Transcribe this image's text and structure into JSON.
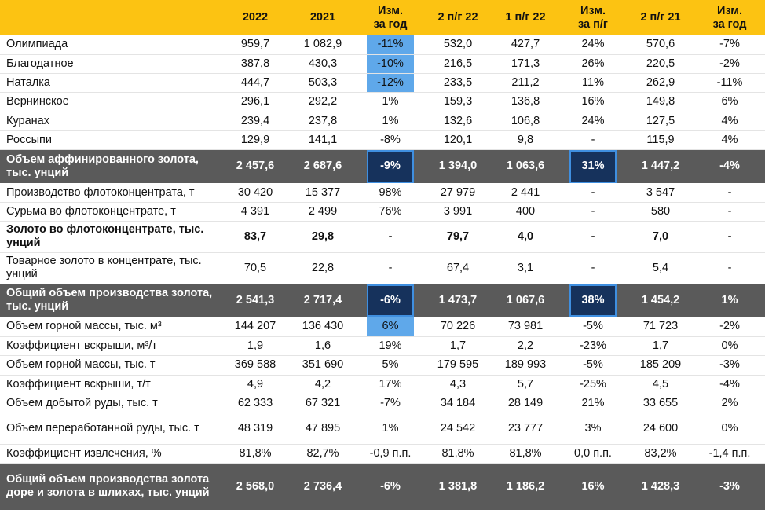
{
  "table": {
    "columns": [
      "",
      "2022",
      "2021",
      "Изм.\nза год",
      "2 п/г 22",
      "1 п/г 22",
      "Изм.\nза п/г",
      "2 п/г 21",
      "Изм.\nза год"
    ],
    "rows": [
      [
        "Олимпиада",
        "959,7",
        "1 082,9",
        "-11%",
        "532,0",
        "427,7",
        "24%",
        "570,6",
        "-7%"
      ],
      [
        "Благодатное",
        "387,8",
        "430,3",
        "-10%",
        "216,5",
        "171,3",
        "26%",
        "220,5",
        "-2%"
      ],
      [
        "Наталка",
        "444,7",
        "503,3",
        "-12%",
        "233,5",
        "211,2",
        "11%",
        "262,9",
        "-11%"
      ],
      [
        "Вернинское",
        "296,1",
        "292,2",
        "1%",
        "159,3",
        "136,8",
        "16%",
        "149,8",
        "6%"
      ],
      [
        "Куранах",
        "239,4",
        "237,8",
        "1%",
        "132,6",
        "106,8",
        "24%",
        "127,5",
        "4%"
      ],
      [
        "Россыпи",
        "129,9",
        "141,1",
        "-8%",
        "120,1",
        "9,8",
        "-",
        "115,9",
        "4%"
      ],
      [
        "Объем аффинированного золота, тыс. унций",
        "2 457,6",
        "2 687,6",
        "-9%",
        "1 394,0",
        "1 063,6",
        "31%",
        "1 447,2",
        "-4%"
      ],
      [
        "Производство флотоконцентрата, т",
        "30 420",
        "15 377",
        "98%",
        "27 979",
        "2 441",
        "-",
        "3 547",
        "-"
      ],
      [
        "Сурьма во флотоконцентрате, т",
        "4 391",
        "2 499",
        "76%",
        "3 991",
        "400",
        "-",
        "580",
        "-"
      ],
      [
        "Золото во флотоконцентрате, тыс. унций",
        "83,7",
        "29,8",
        "-",
        "79,7",
        "4,0",
        "-",
        "7,0",
        "-"
      ],
      [
        "Товарное золото в концентрате, тыс. унций",
        "70,5",
        "22,8",
        "-",
        "67,4",
        "3,1",
        "-",
        "5,4",
        "-"
      ],
      [
        "Общий объем производства золота, тыс. унций",
        "2 541,3",
        "2 717,4",
        "-6%",
        "1 473,7",
        "1 067,6",
        "38%",
        "1 454,2",
        "1%"
      ],
      [
        "Объем горной массы, тыс. м³",
        "144 207",
        "136 430",
        "6%",
        "70 226",
        "73 981",
        "-5%",
        "71 723",
        "-2%"
      ],
      [
        "Коэффициент вскрыши, м³/т",
        "1,9",
        "1,6",
        "19%",
        "1,7",
        "2,2",
        "-23%",
        "1,7",
        "0%"
      ],
      [
        "Объем горной массы, тыс. т",
        "369 588",
        "351 690",
        "5%",
        "179 595",
        "189 993",
        "-5%",
        "185 209",
        "-3%"
      ],
      [
        "Коэффициент вскрыши, т/т",
        "4,9",
        "4,2",
        "17%",
        "4,3",
        "5,7",
        "-25%",
        "4,5",
        "-4%"
      ],
      [
        "Объем добытой руды, тыс. т",
        "62 333",
        "67 321",
        "-7%",
        "34 184",
        "28 149",
        "21%",
        "33 655",
        "2%"
      ],
      [
        "Объем переработанной руды, тыс. т",
        "48 319",
        "47 895",
        "1%",
        "24 542",
        "23 777",
        "3%",
        "24 600",
        "0%"
      ],
      [
        "Коэффициент извлечения, %",
        "81,8%",
        "82,7%",
        "-0,9 п.п.",
        "81,8%",
        "81,8%",
        "0,0 п.п.",
        "83,2%",
        "-1,4 п.п."
      ],
      [
        "Общий объем производства золота доре и золота в шлихах, тыс. унций",
        "2 568,0",
        "2 736,4",
        "-6%",
        "1 381,8",
        "1 186,2",
        "16%",
        "1 428,3",
        "-3%"
      ]
    ]
  }
}
